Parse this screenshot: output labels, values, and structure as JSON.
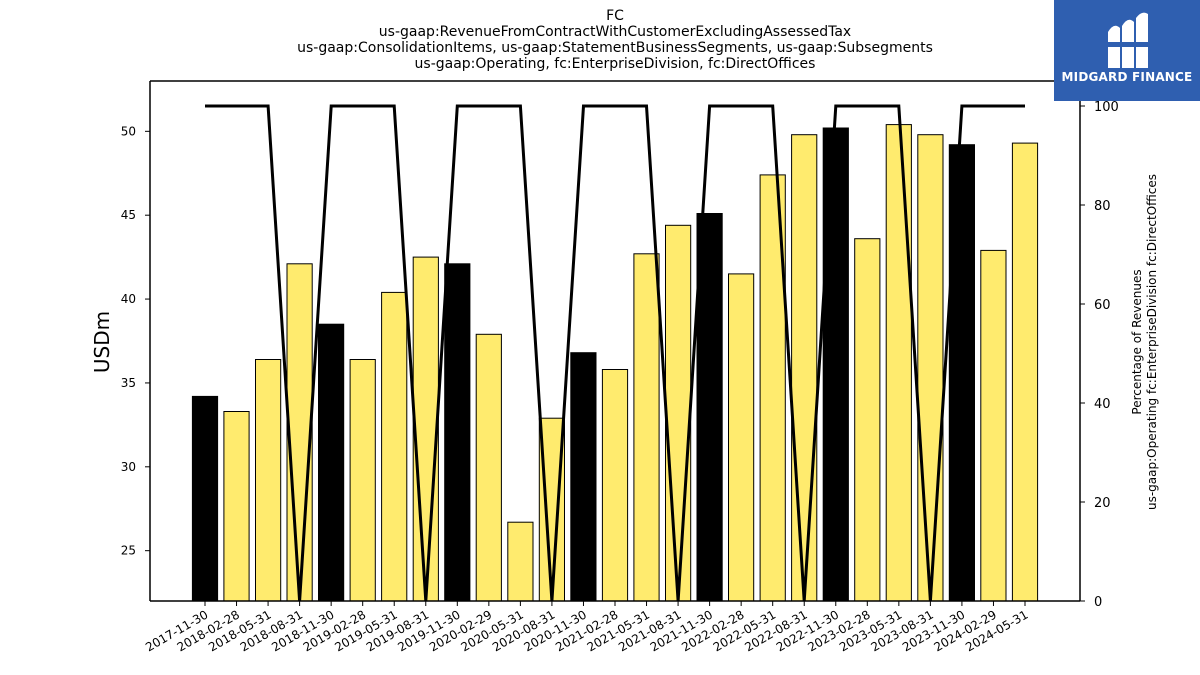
{
  "chart_data": {
    "type": "bar",
    "title_lines": [
      "FC",
      "us-gaap:RevenueFromContractWithCustomerExcludingAssessedTax",
      "us-gaap:ConsolidationItems, us-gaap:StatementBusinessSegments, us-gaap:Subsegments",
      "us-gaap:Operating, fc:EnterpriseDivision, fc:DirectOffices"
    ],
    "ylabel": "USDm",
    "ylabel_right_lines": [
      "Percentage of Revenues",
      "us-gaap:Operating fc:EnterpriseDivision fc:DirectOffices"
    ],
    "categories": [
      "2017-11-30",
      "2018-02-28",
      "2018-05-31",
      "2018-08-31",
      "2018-11-30",
      "2019-02-28",
      "2019-05-31",
      "2019-08-31",
      "2019-11-30",
      "2020-02-29",
      "2020-05-31",
      "2020-08-31",
      "2020-11-30",
      "2021-02-28",
      "2021-05-31",
      "2021-08-31",
      "2021-11-30",
      "2022-02-28",
      "2022-05-31",
      "2022-08-31",
      "2022-11-30",
      "2023-02-28",
      "2023-05-31",
      "2023-08-31",
      "2023-11-30",
      "2024-02-29",
      "2024-05-31"
    ],
    "values": [
      34.2,
      33.3,
      36.4,
      42.1,
      38.5,
      36.4,
      40.4,
      42.5,
      42.1,
      37.9,
      26.7,
      32.9,
      36.8,
      35.8,
      42.7,
      44.4,
      45.1,
      41.5,
      47.4,
      49.8,
      50.2,
      43.6,
      50.4,
      49.8,
      49.2,
      42.9,
      49.3
    ],
    "bar_colors": [
      "#000000",
      "#ffeb6e",
      "#ffeb6e",
      "#ffeb6e",
      "#000000",
      "#ffeb6e",
      "#ffeb6e",
      "#ffeb6e",
      "#000000",
      "#ffeb6e",
      "#ffeb6e",
      "#ffeb6e",
      "#000000",
      "#ffeb6e",
      "#ffeb6e",
      "#ffeb6e",
      "#000000",
      "#ffeb6e",
      "#ffeb6e",
      "#ffeb6e",
      "#000000",
      "#ffeb6e",
      "#ffeb6e",
      "#ffeb6e",
      "#000000",
      "#ffeb6e",
      "#ffeb6e"
    ],
    "ylim": [
      22,
      53
    ],
    "yticks": [
      25,
      30,
      35,
      40,
      45,
      50
    ],
    "line_values": [
      100,
      100,
      100,
      0,
      100,
      100,
      100,
      0,
      100,
      100,
      100,
      0,
      100,
      100,
      100,
      0,
      100,
      100,
      100,
      0,
      100,
      100,
      100,
      0,
      100,
      100,
      100
    ],
    "y2lim": [
      0,
      100
    ],
    "y2ticks": [
      0,
      20,
      40,
      60,
      80,
      100
    ],
    "line_color": "#000000",
    "grid": false
  },
  "logo": {
    "text": "MIDGARD FINANCE",
    "color": "#2f5fb0"
  }
}
